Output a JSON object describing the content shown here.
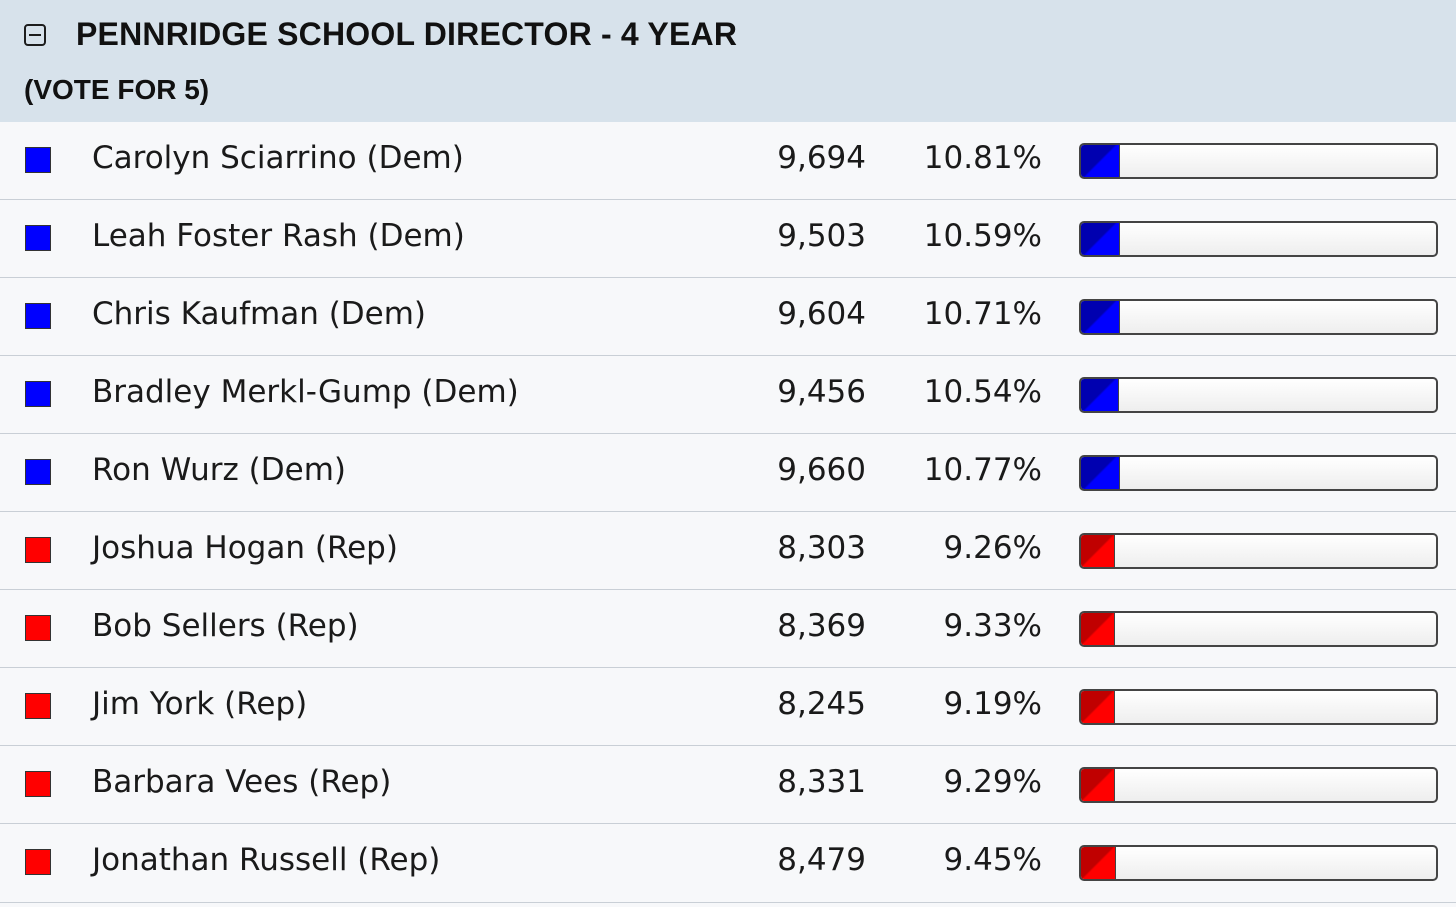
{
  "header": {
    "title": "PENNRIDGE SCHOOL DIRECTOR - 4 YEAR",
    "subtitle": "(VOTE FOR 5)",
    "collapse_icon": "minus-square-icon"
  },
  "colors": {
    "dem": "#0000ff",
    "rep": "#ff0000",
    "dem_dark": "#0000b0",
    "rep_dark": "#c00000"
  },
  "candidates": [
    {
      "name": "Carolyn Sciarrino (Dem)",
      "party": "dem",
      "votes": "9,694",
      "percent": "10.81%",
      "share": 10.81
    },
    {
      "name": "Leah Foster Rash (Dem)",
      "party": "dem",
      "votes": "9,503",
      "percent": "10.59%",
      "share": 10.59
    },
    {
      "name": "Chris Kaufman (Dem)",
      "party": "dem",
      "votes": "9,604",
      "percent": "10.71%",
      "share": 10.71
    },
    {
      "name": "Bradley Merkl-Gump (Dem)",
      "party": "dem",
      "votes": "9,456",
      "percent": "10.54%",
      "share": 10.54
    },
    {
      "name": "Ron Wurz (Dem)",
      "party": "dem",
      "votes": "9,660",
      "percent": "10.77%",
      "share": 10.77
    },
    {
      "name": "Joshua Hogan (Rep)",
      "party": "rep",
      "votes": "8,303",
      "percent": "9.26%",
      "share": 9.26
    },
    {
      "name": "Bob Sellers (Rep)",
      "party": "rep",
      "votes": "8,369",
      "percent": "9.33%",
      "share": 9.33
    },
    {
      "name": "Jim York (Rep)",
      "party": "rep",
      "votes": "8,245",
      "percent": "9.19%",
      "share": 9.19
    },
    {
      "name": "Barbara Vees (Rep)",
      "party": "rep",
      "votes": "8,331",
      "percent": "9.29%",
      "share": 9.29
    },
    {
      "name": "Jonathan Russell (Rep)",
      "party": "rep",
      "votes": "8,479",
      "percent": "9.45%",
      "share": 9.45
    }
  ]
}
